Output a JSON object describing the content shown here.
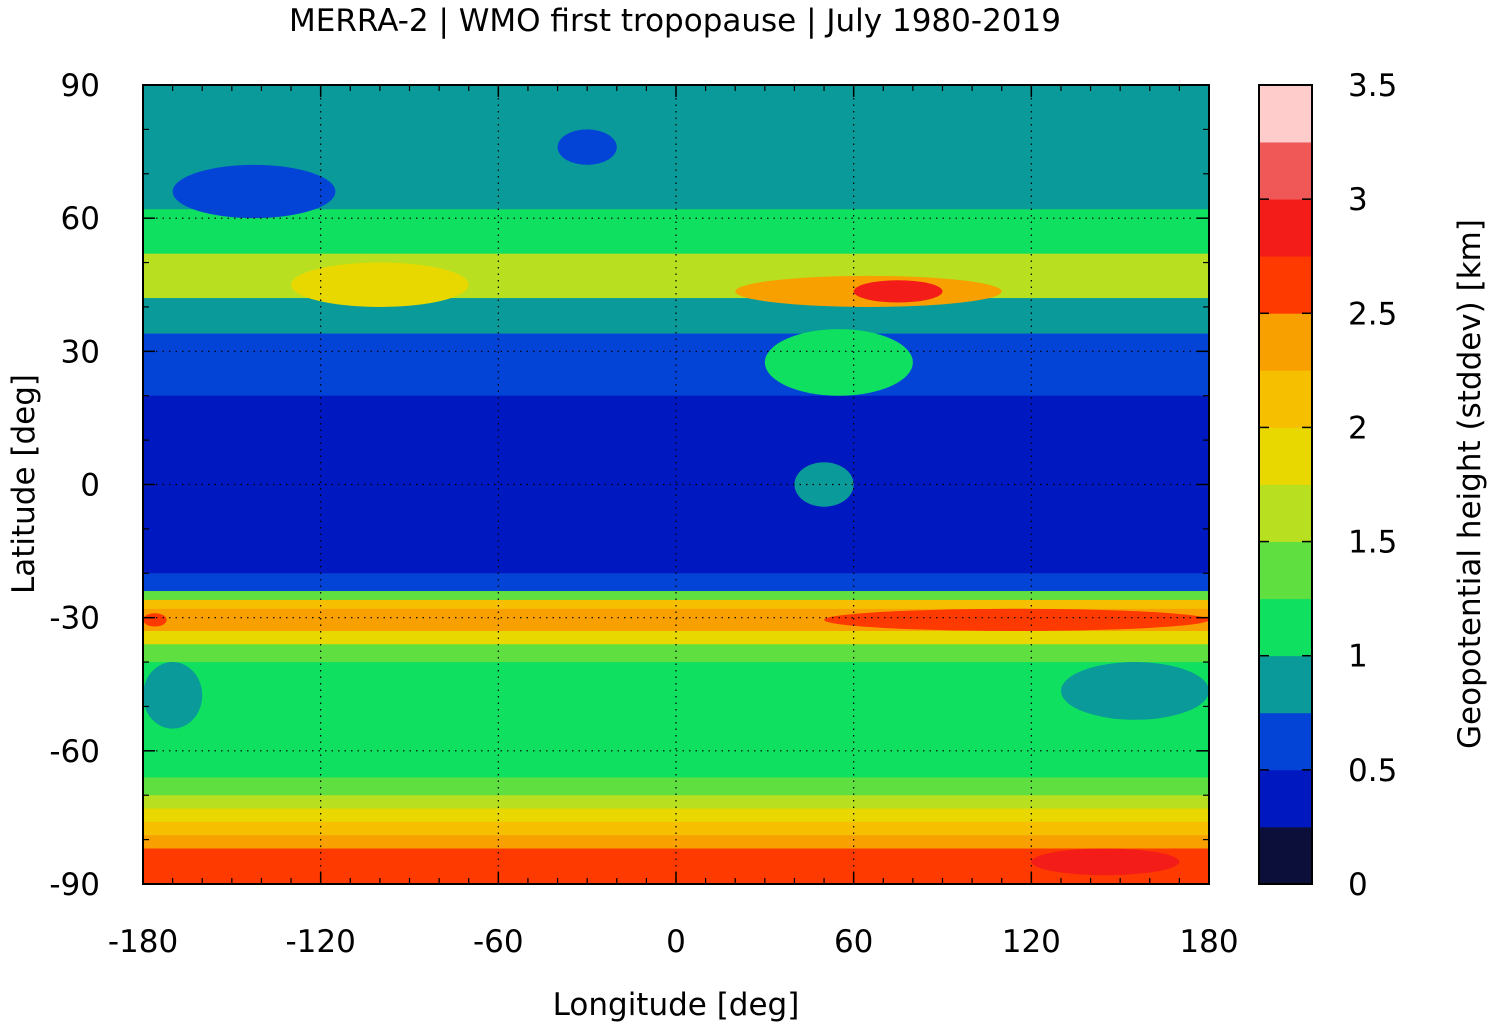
{
  "chart_data": {
    "type": "heatmap",
    "title": "MERRA-2 | WMO first tropopause | July 1980-2019",
    "xlabel": "Longitude [deg]",
    "ylabel": "Latitude [deg]",
    "xlim": [
      -180,
      180
    ],
    "ylim": [
      -90,
      90
    ],
    "xticks": [
      "-180",
      "-120",
      "-60",
      "0",
      "60",
      "120",
      "180"
    ],
    "yticks": [
      "90",
      "60",
      "30",
      "0",
      "-30",
      "-60",
      "-90"
    ],
    "grid": true,
    "colorbar": {
      "label": "Geopotential height (stddev) [km]",
      "range": [
        0,
        3.5
      ],
      "ticks": [
        "0",
        "0.5",
        "1",
        "1.5",
        "2",
        "2.5",
        "3",
        "3.5"
      ],
      "levels": [
        0,
        0.25,
        0.5,
        0.75,
        1.0,
        1.25,
        1.5,
        1.75,
        2.0,
        2.25,
        2.5,
        2.75,
        3.0,
        3.25,
        3.5
      ],
      "colors": [
        "#0c0f3a",
        "#0018c0",
        "#0344d6",
        "#0a9a9a",
        "#10e060",
        "#60e040",
        "#b8e020",
        "#e8d800",
        "#f6c000",
        "#f8a000",
        "#ff3a00",
        "#f41c18",
        "#f05858",
        "#ffcccc"
      ]
    },
    "zonal_profile_note": "",
    "rows": [
      {
        "lat": [
          90,
          80
        ],
        "value": 0.9
      },
      {
        "lat": [
          80,
          62
        ],
        "value": 0.85
      },
      {
        "lat": [
          62,
          52
        ],
        "value": 1.2
      },
      {
        "lat": [
          52,
          42
        ],
        "value": 1.6
      },
      {
        "lat": [
          42,
          34
        ],
        "value": 0.9
      },
      {
        "lat": [
          34,
          20
        ],
        "value": 0.6
      },
      {
        "lat": [
          20,
          -20
        ],
        "value": 0.4
      },
      {
        "lat": [
          -20,
          -24
        ],
        "value": 0.7
      },
      {
        "lat": [
          -24,
          -26
        ],
        "value": 1.3
      },
      {
        "lat": [
          -26,
          -28
        ],
        "value": 2.1
      },
      {
        "lat": [
          -28,
          -33
        ],
        "value": 2.4
      },
      {
        "lat": [
          -33,
          -36
        ],
        "value": 1.9
      },
      {
        "lat": [
          -36,
          -40
        ],
        "value": 1.4
      },
      {
        "lat": [
          -40,
          -57
        ],
        "value": 1.15
      },
      {
        "lat": [
          -57,
          -66
        ],
        "value": 1.2
      },
      {
        "lat": [
          -66,
          -70
        ],
        "value": 1.45
      },
      {
        "lat": [
          -70,
          -73
        ],
        "value": 1.7
      },
      {
        "lat": [
          -73,
          -76
        ],
        "value": 1.95
      },
      {
        "lat": [
          -76,
          -79
        ],
        "value": 2.2
      },
      {
        "lat": [
          -79,
          -82
        ],
        "value": 2.4
      },
      {
        "lat": [
          -82,
          -90
        ],
        "value": 2.6
      }
    ],
    "patches": [
      {
        "lon": [
          -170,
          -115
        ],
        "lat": [
          72,
          60
        ],
        "value": 0.6
      },
      {
        "lon": [
          -40,
          -20
        ],
        "lat": [
          80,
          72
        ],
        "value": 0.6
      },
      {
        "lon": [
          20,
          110
        ],
        "lat": [
          47,
          40
        ],
        "value": 2.4
      },
      {
        "lon": [
          60,
          90
        ],
        "lat": [
          46,
          41
        ],
        "value": 2.8
      },
      {
        "lon": [
          -130,
          -70
        ],
        "lat": [
          50,
          40
        ],
        "value": 1.9
      },
      {
        "lon": [
          30,
          80
        ],
        "lat": [
          35,
          20
        ],
        "value": 1.1
      },
      {
        "lon": [
          40,
          60
        ],
        "lat": [
          5,
          -5
        ],
        "value": 0.9
      },
      {
        "lon": [
          -180,
          -160
        ],
        "lat": [
          -40,
          -55
        ],
        "value": 0.9
      },
      {
        "lon": [
          130,
          180
        ],
        "lat": [
          -40,
          -53
        ],
        "value": 0.9
      },
      {
        "lon": [
          50,
          180
        ],
        "lat": [
          -28,
          -33
        ],
        "value": 2.7
      },
      {
        "lon": [
          -180,
          -172
        ],
        "lat": [
          -29,
          -32
        ],
        "value": 2.7
      },
      {
        "lon": [
          120,
          170
        ],
        "lat": [
          -82,
          -88
        ],
        "value": 2.8
      }
    ]
  }
}
